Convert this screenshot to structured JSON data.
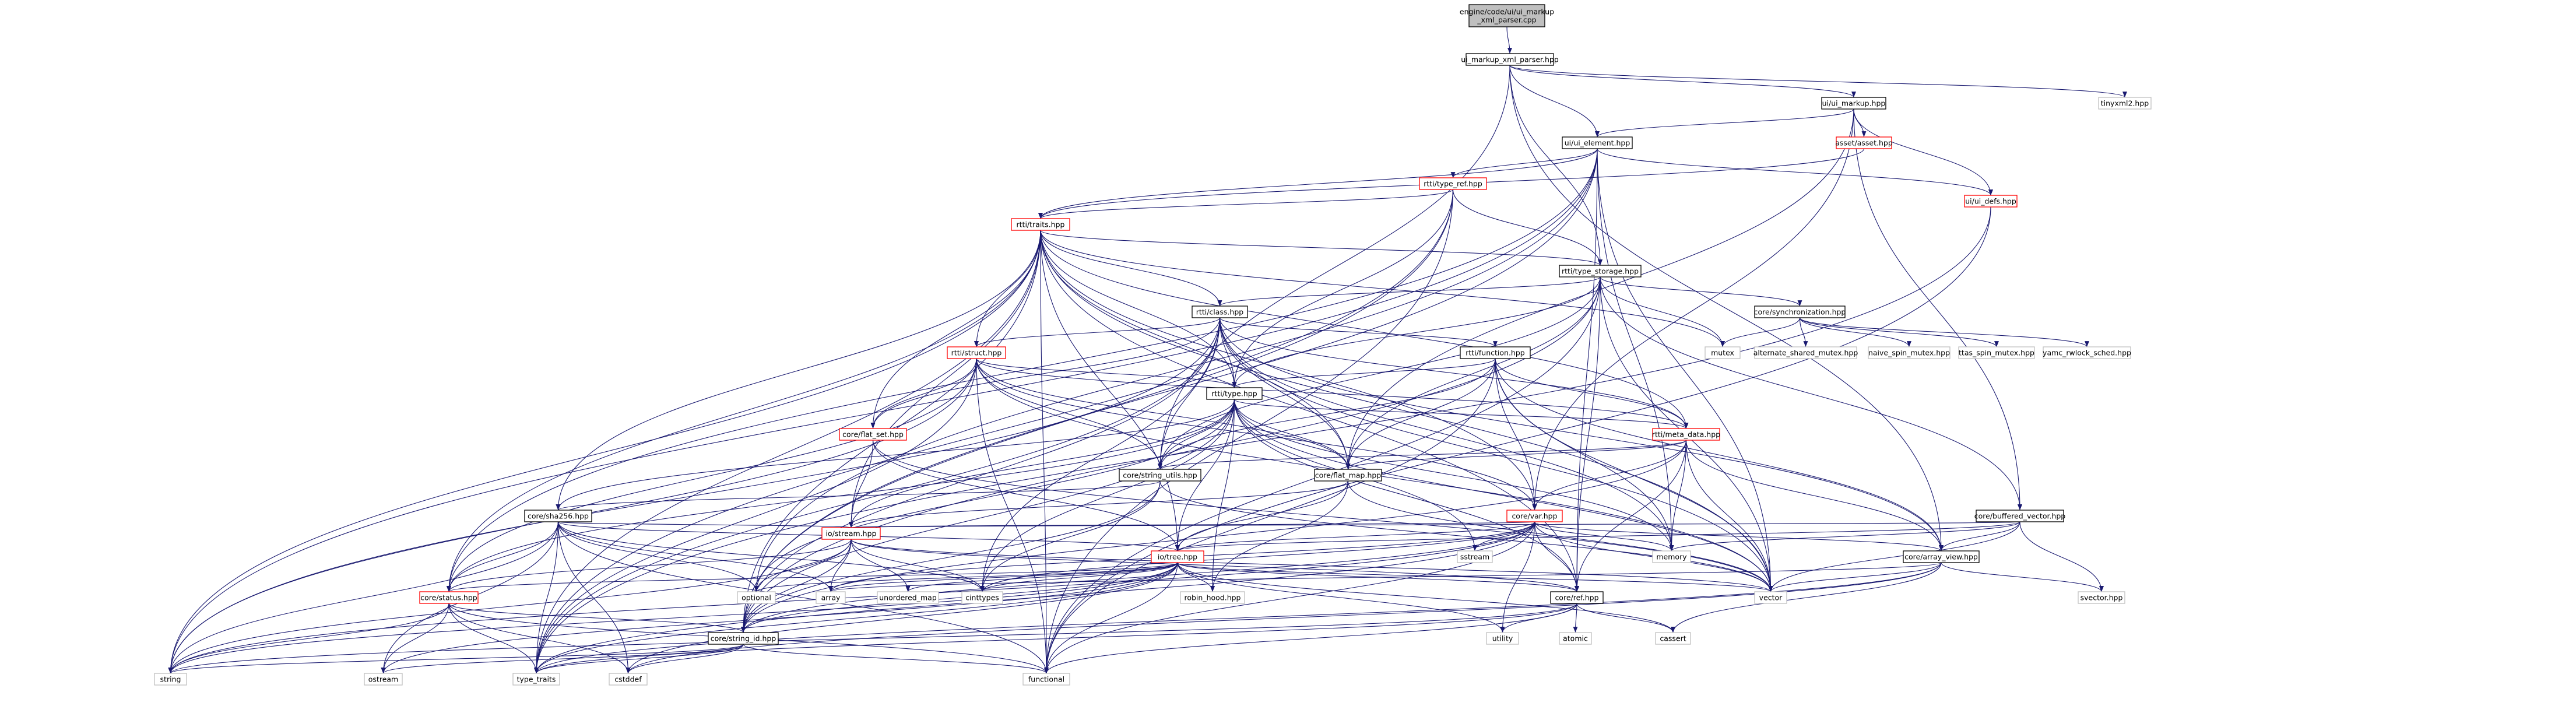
{
  "diagram": {
    "type": "include-dependency-graph",
    "colors": {
      "edge": "#191970",
      "root_fill": "#bfbfbf",
      "normal_fill": "#ffffff",
      "normal_border": "#000000",
      "truncated_border": "#ff0000"
    },
    "nodes": [
      {
        "id": "root",
        "label": "engine/code/ui/ui_markup\n_xml_parser.cpp",
        "style": "root"
      },
      {
        "id": "ui_markup_xml_parser_hpp",
        "label": "ui_markup_xml_parser.hpp",
        "style": "normal"
      },
      {
        "id": "ui_markup_hpp",
        "label": "ui/ui_markup.hpp",
        "style": "normal"
      },
      {
        "id": "tinyxml2_hpp",
        "label": "tinyxml2.hpp",
        "style": "external"
      },
      {
        "id": "ui_element_hpp",
        "label": "ui/ui_element.hpp",
        "style": "normal"
      },
      {
        "id": "asset_hpp",
        "label": "asset/asset.hpp",
        "style": "truncated"
      },
      {
        "id": "ui_defs_hpp",
        "label": "ui/ui_defs.hpp",
        "style": "truncated"
      },
      {
        "id": "type_ref_hpp",
        "label": "rtti/type_ref.hpp",
        "style": "truncated"
      },
      {
        "id": "traits_hpp",
        "label": "rtti/traits.hpp",
        "style": "truncated"
      },
      {
        "id": "type_storage_hpp",
        "label": "rtti/type_storage.hpp",
        "style": "normal"
      },
      {
        "id": "class_hpp",
        "label": "rtti/class.hpp",
        "style": "normal"
      },
      {
        "id": "synchronization_hpp",
        "label": "core/synchronization.hpp",
        "style": "normal"
      },
      {
        "id": "mutex",
        "label": "mutex",
        "style": "external"
      },
      {
        "id": "alternate_shared_mutex_hpp",
        "label": "alternate_shared_mutex.hpp",
        "style": "external"
      },
      {
        "id": "naive_spin_mutex_hpp",
        "label": "naive_spin_mutex.hpp",
        "style": "external"
      },
      {
        "id": "ttas_spin_mutex_hpp",
        "label": "ttas_spin_mutex.hpp",
        "style": "external"
      },
      {
        "id": "yamc_rwlock_sched_hpp",
        "label": "yamc_rwlock_sched.hpp",
        "style": "external"
      },
      {
        "id": "struct_hpp",
        "label": "rtti/struct.hpp",
        "style": "truncated"
      },
      {
        "id": "function_hpp",
        "label": "rtti/function.hpp",
        "style": "normal"
      },
      {
        "id": "type_hpp",
        "label": "rtti/type.hpp",
        "style": "normal"
      },
      {
        "id": "meta_data_hpp",
        "label": "rtti/meta_data.hpp",
        "style": "truncated"
      },
      {
        "id": "flat_set_hpp",
        "label": "core/flat_set.hpp",
        "style": "truncated"
      },
      {
        "id": "string_utils_hpp",
        "label": "core/string_utils.hpp",
        "style": "normal"
      },
      {
        "id": "flat_map_hpp",
        "label": "core/flat_map.hpp",
        "style": "normal"
      },
      {
        "id": "sha256_hpp",
        "label": "core/sha256.hpp",
        "style": "normal"
      },
      {
        "id": "var_hpp",
        "label": "core/var.hpp",
        "style": "truncated"
      },
      {
        "id": "buffered_vector_hpp",
        "label": "core/buffered_vector.hpp",
        "style": "normal"
      },
      {
        "id": "stream_hpp",
        "label": "io/stream.hpp",
        "style": "truncated"
      },
      {
        "id": "tree_hpp",
        "label": "io/tree.hpp",
        "style": "truncated"
      },
      {
        "id": "array_view_hpp",
        "label": "core/array_view.hpp",
        "style": "normal"
      },
      {
        "id": "status_hpp",
        "label": "core/status.hpp",
        "style": "truncated"
      },
      {
        "id": "ref_hpp",
        "label": "core/ref.hpp",
        "style": "normal"
      },
      {
        "id": "string_id_hpp",
        "label": "core/string_id.hpp",
        "style": "normal"
      },
      {
        "id": "sstream",
        "label": "sstream",
        "style": "external"
      },
      {
        "id": "memory",
        "label": "memory",
        "style": "external"
      },
      {
        "id": "optional",
        "label": "optional",
        "style": "external"
      },
      {
        "id": "array",
        "label": "array",
        "style": "external"
      },
      {
        "id": "unordered_map",
        "label": "unordered_map",
        "style": "external"
      },
      {
        "id": "cinttypes",
        "label": "cinttypes",
        "style": "external"
      },
      {
        "id": "robin_hood_hpp",
        "label": "robin_hood.hpp",
        "style": "external"
      },
      {
        "id": "vector",
        "label": "vector",
        "style": "external"
      },
      {
        "id": "svector_hpp",
        "label": "svector.hpp",
        "style": "external"
      },
      {
        "id": "utility",
        "label": "utility",
        "style": "external"
      },
      {
        "id": "atomic",
        "label": "atomic",
        "style": "external"
      },
      {
        "id": "cassert",
        "label": "cassert",
        "style": "external"
      },
      {
        "id": "string",
        "label": "string",
        "style": "external"
      },
      {
        "id": "ostream",
        "label": "ostream",
        "style": "external"
      },
      {
        "id": "type_traits",
        "label": "type_traits",
        "style": "external"
      },
      {
        "id": "cstddef",
        "label": "cstddef",
        "style": "external"
      },
      {
        "id": "functional",
        "label": "functional",
        "style": "external"
      }
    ],
    "edges": [
      [
        "root",
        "ui_markup_xml_parser_hpp"
      ],
      [
        "ui_markup_xml_parser_hpp",
        "ui_markup_hpp"
      ],
      [
        "ui_markup_xml_parser_hpp",
        "tinyxml2_hpp"
      ],
      [
        "ui_markup_xml_parser_hpp",
        "ui_element_hpp"
      ],
      [
        "ui_markup_xml_parser_hpp",
        "type_storage_hpp"
      ],
      [
        "ui_markup_xml_parser_hpp",
        "string_utils_hpp"
      ],
      [
        "ui_markup_xml_parser_hpp",
        "array_view_hpp"
      ],
      [
        "ui_markup_hpp",
        "ui_element_hpp"
      ],
      [
        "ui_markup_hpp",
        "asset_hpp"
      ],
      [
        "ui_markup_hpp",
        "ui_defs_hpp"
      ],
      [
        "ui_markup_hpp",
        "buffered_vector_hpp"
      ],
      [
        "ui_markup_hpp",
        "flat_map_hpp"
      ],
      [
        "ui_markup_hpp",
        "var_hpp"
      ],
      [
        "ui_element_hpp",
        "type_ref_hpp"
      ],
      [
        "ui_element_hpp",
        "traits_hpp"
      ],
      [
        "ui_element_hpp",
        "ui_defs_hpp"
      ],
      [
        "ui_element_hpp",
        "string"
      ],
      [
        "ui_element_hpp",
        "status_hpp"
      ],
      [
        "ui_element_hpp",
        "string_id_hpp"
      ],
      [
        "ui_element_hpp",
        "optional"
      ],
      [
        "ui_element_hpp",
        "vector"
      ],
      [
        "ui_element_hpp",
        "ref_hpp"
      ],
      [
        "ui_element_hpp",
        "memory"
      ],
      [
        "asset_hpp",
        "traits_hpp"
      ],
      [
        "ui_defs_hpp",
        "functional"
      ],
      [
        "ui_defs_hpp",
        "type_traits"
      ],
      [
        "type_ref_hpp",
        "traits_hpp"
      ],
      [
        "type_ref_hpp",
        "type_storage_hpp"
      ],
      [
        "type_ref_hpp",
        "type_hpp"
      ],
      [
        "type_ref_hpp",
        "string_id_hpp"
      ],
      [
        "type_ref_hpp",
        "functional"
      ],
      [
        "type_ref_hpp",
        "type_traits"
      ],
      [
        "traits_hpp",
        "type_storage_hpp"
      ],
      [
        "traits_hpp",
        "class_hpp"
      ],
      [
        "traits_hpp",
        "struct_hpp"
      ],
      [
        "traits_hpp",
        "type_hpp"
      ],
      [
        "traits_hpp",
        "meta_data_hpp"
      ],
      [
        "traits_hpp",
        "flat_set_hpp"
      ],
      [
        "traits_hpp",
        "flat_map_hpp"
      ],
      [
        "traits_hpp",
        "sha256_hpp"
      ],
      [
        "traits_hpp",
        "var_hpp"
      ],
      [
        "traits_hpp",
        "stream_hpp"
      ],
      [
        "traits_hpp",
        "tree_hpp"
      ],
      [
        "traits_hpp",
        "status_hpp"
      ],
      [
        "traits_hpp",
        "ref_hpp"
      ],
      [
        "traits_hpp",
        "string_id_hpp"
      ],
      [
        "traits_hpp",
        "mutex"
      ],
      [
        "traits_hpp",
        "string"
      ],
      [
        "traits_hpp",
        "type_traits"
      ],
      [
        "traits_hpp",
        "functional"
      ],
      [
        "traits_hpp",
        "vector"
      ],
      [
        "type_storage_hpp",
        "class_hpp"
      ],
      [
        "type_storage_hpp",
        "synchronization_hpp"
      ],
      [
        "type_storage_hpp",
        "mutex"
      ],
      [
        "type_storage_hpp",
        "type_hpp"
      ],
      [
        "type_storage_hpp",
        "string_utils_hpp"
      ],
      [
        "type_storage_hpp",
        "flat_map_hpp"
      ],
      [
        "type_storage_hpp",
        "buffered_vector_hpp"
      ],
      [
        "type_storage_hpp",
        "ref_hpp"
      ],
      [
        "type_storage_hpp",
        "string_id_hpp"
      ],
      [
        "type_storage_hpp",
        "vector"
      ],
      [
        "type_storage_hpp",
        "functional"
      ],
      [
        "synchronization_hpp",
        "mutex"
      ],
      [
        "synchronization_hpp",
        "alternate_shared_mutex_hpp"
      ],
      [
        "synchronization_hpp",
        "naive_spin_mutex_hpp"
      ],
      [
        "synchronization_hpp",
        "ttas_spin_mutex_hpp"
      ],
      [
        "synchronization_hpp",
        "yamc_rwlock_sched_hpp"
      ],
      [
        "class_hpp",
        "struct_hpp"
      ],
      [
        "class_hpp",
        "function_hpp"
      ],
      [
        "class_hpp",
        "type_hpp"
      ],
      [
        "class_hpp",
        "meta_data_hpp"
      ],
      [
        "class_hpp",
        "flat_set_hpp"
      ],
      [
        "class_hpp",
        "flat_map_hpp"
      ],
      [
        "class_hpp",
        "string_utils_hpp"
      ],
      [
        "class_hpp",
        "array_view_hpp"
      ],
      [
        "class_hpp",
        "string"
      ],
      [
        "class_hpp",
        "vector"
      ],
      [
        "class_hpp",
        "memory"
      ],
      [
        "class_hpp",
        "type_traits"
      ],
      [
        "class_hpp",
        "string_id_hpp"
      ],
      [
        "class_hpp",
        "cinttypes"
      ],
      [
        "struct_hpp",
        "type_hpp"
      ],
      [
        "struct_hpp",
        "meta_data_hpp"
      ],
      [
        "struct_hpp",
        "flat_set_hpp"
      ],
      [
        "struct_hpp",
        "flat_map_hpp"
      ],
      [
        "struct_hpp",
        "string_utils_hpp"
      ],
      [
        "struct_hpp",
        "var_hpp"
      ],
      [
        "struct_hpp",
        "status_hpp"
      ],
      [
        "struct_hpp",
        "string"
      ],
      [
        "struct_hpp",
        "vector"
      ],
      [
        "struct_hpp",
        "type_traits"
      ],
      [
        "struct_hpp",
        "functional"
      ],
      [
        "function_hpp",
        "type_hpp"
      ],
      [
        "function_hpp",
        "meta_data_hpp"
      ],
      [
        "function_hpp",
        "var_hpp"
      ],
      [
        "function_hpp",
        "flat_map_hpp"
      ],
      [
        "function_hpp",
        "string_utils_hpp"
      ],
      [
        "function_hpp",
        "array_view_hpp"
      ],
      [
        "function_hpp",
        "vector"
      ],
      [
        "function_hpp",
        "functional"
      ],
      [
        "function_hpp",
        "memory"
      ],
      [
        "type_hpp",
        "meta_data_hpp"
      ],
      [
        "type_hpp",
        "string_utils_hpp"
      ],
      [
        "type_hpp",
        "flat_map_hpp"
      ],
      [
        "type_hpp",
        "sha256_hpp"
      ],
      [
        "type_hpp",
        "stream_hpp"
      ],
      [
        "type_hpp",
        "tree_hpp"
      ],
      [
        "type_hpp",
        "status_hpp"
      ],
      [
        "type_hpp",
        "ref_hpp"
      ],
      [
        "type_hpp",
        "string_id_hpp"
      ],
      [
        "type_hpp",
        "sstream"
      ],
      [
        "type_hpp",
        "memory"
      ],
      [
        "type_hpp",
        "optional"
      ],
      [
        "type_hpp",
        "vector"
      ],
      [
        "type_hpp",
        "robin_hood_hpp"
      ],
      [
        "type_hpp",
        "cinttypes"
      ],
      [
        "meta_data_hpp",
        "string_utils_hpp"
      ],
      [
        "meta_data_hpp",
        "flat_map_hpp"
      ],
      [
        "meta_data_hpp",
        "var_hpp"
      ],
      [
        "meta_data_hpp",
        "array_view_hpp"
      ],
      [
        "meta_data_hpp",
        "ref_hpp"
      ],
      [
        "meta_data_hpp",
        "vector"
      ],
      [
        "meta_data_hpp",
        "memory"
      ],
      [
        "meta_data_hpp",
        "string_id_hpp"
      ],
      [
        "flat_set_hpp",
        "stream_hpp"
      ],
      [
        "flat_set_hpp",
        "tree_hpp"
      ],
      [
        "flat_set_hpp",
        "vector"
      ],
      [
        "string_utils_hpp",
        "sha256_hpp"
      ],
      [
        "string_utils_hpp",
        "string_id_hpp"
      ],
      [
        "string_utils_hpp",
        "vector"
      ],
      [
        "string_utils_hpp",
        "cinttypes"
      ],
      [
        "flat_map_hpp",
        "stream_hpp"
      ],
      [
        "flat_map_hpp",
        "tree_hpp"
      ],
      [
        "flat_map_hpp",
        "robin_hood_hpp"
      ],
      [
        "flat_map_hpp",
        "vector"
      ],
      [
        "sha256_hpp",
        "stream_hpp"
      ],
      [
        "sha256_hpp",
        "tree_hpp"
      ],
      [
        "sha256_hpp",
        "status_hpp"
      ],
      [
        "sha256_hpp",
        "array"
      ],
      [
        "sha256_hpp",
        "string"
      ],
      [
        "sha256_hpp",
        "ostream"
      ],
      [
        "sha256_hpp",
        "type_traits"
      ],
      [
        "sha256_hpp",
        "cstddef"
      ],
      [
        "sha256_hpp",
        "functional"
      ],
      [
        "sha256_hpp",
        "cinttypes"
      ],
      [
        "sha256_hpp",
        "optional"
      ],
      [
        "var_hpp",
        "stream_hpp"
      ],
      [
        "var_hpp",
        "tree_hpp"
      ],
      [
        "var_hpp",
        "array_view_hpp"
      ],
      [
        "var_hpp",
        "ref_hpp"
      ],
      [
        "var_hpp",
        "string_id_hpp"
      ],
      [
        "var_hpp",
        "sstream"
      ],
      [
        "var_hpp",
        "memory"
      ],
      [
        "var_hpp",
        "vector"
      ],
      [
        "var_hpp",
        "array"
      ],
      [
        "var_hpp",
        "cinttypes"
      ],
      [
        "var_hpp",
        "functional"
      ],
      [
        "var_hpp",
        "type_traits"
      ],
      [
        "var_hpp",
        "utility"
      ],
      [
        "var_hpp",
        "string"
      ],
      [
        "buffered_vector_hpp",
        "array_view_hpp"
      ],
      [
        "buffered_vector_hpp",
        "vector"
      ],
      [
        "buffered_vector_hpp",
        "svector_hpp"
      ],
      [
        "buffered_vector_hpp",
        "memory"
      ],
      [
        "buffered_vector_hpp",
        "stream_hpp"
      ],
      [
        "buffered_vector_hpp",
        "tree_hpp"
      ],
      [
        "stream_hpp",
        "status_hpp"
      ],
      [
        "stream_hpp",
        "string_id_hpp"
      ],
      [
        "stream_hpp",
        "ref_hpp"
      ],
      [
        "stream_hpp",
        "optional"
      ],
      [
        "stream_hpp",
        "array"
      ],
      [
        "stream_hpp",
        "unordered_map"
      ],
      [
        "stream_hpp",
        "cinttypes"
      ],
      [
        "stream_hpp",
        "vector"
      ],
      [
        "stream_hpp",
        "string"
      ],
      [
        "tree_hpp",
        "status_hpp"
      ],
      [
        "tree_hpp",
        "string_id_hpp"
      ],
      [
        "tree_hpp",
        "ref_hpp"
      ],
      [
        "tree_hpp",
        "optional"
      ],
      [
        "tree_hpp",
        "array"
      ],
      [
        "tree_hpp",
        "unordered_map"
      ],
      [
        "tree_hpp",
        "cinttypes"
      ],
      [
        "tree_hpp",
        "robin_hood_hpp"
      ],
      [
        "tree_hpp",
        "vector"
      ],
      [
        "tree_hpp",
        "string"
      ],
      [
        "tree_hpp",
        "ostream"
      ],
      [
        "tree_hpp",
        "type_traits"
      ],
      [
        "tree_hpp",
        "cstddef"
      ],
      [
        "tree_hpp",
        "functional"
      ],
      [
        "tree_hpp",
        "utility"
      ],
      [
        "tree_hpp",
        "cassert"
      ],
      [
        "array_view_hpp",
        "vector"
      ],
      [
        "array_view_hpp",
        "svector_hpp"
      ],
      [
        "array_view_hpp",
        "array"
      ],
      [
        "array_view_hpp",
        "cassert"
      ],
      [
        "array_view_hpp",
        "type_traits"
      ],
      [
        "array_view_hpp",
        "cstddef"
      ],
      [
        "status_hpp",
        "string"
      ],
      [
        "status_hpp",
        "ostream"
      ],
      [
        "status_hpp",
        "type_traits"
      ],
      [
        "status_hpp",
        "functional"
      ],
      [
        "status_hpp",
        "string_id_hpp"
      ],
      [
        "status_hpp",
        "cstddef"
      ],
      [
        "ref_hpp",
        "atomic"
      ],
      [
        "ref_hpp",
        "utility"
      ],
      [
        "ref_hpp",
        "cassert"
      ],
      [
        "ref_hpp",
        "type_traits"
      ],
      [
        "ref_hpp",
        "functional"
      ],
      [
        "ref_hpp",
        "string"
      ],
      [
        "string_id_hpp",
        "string"
      ],
      [
        "string_id_hpp",
        "functional"
      ],
      [
        "string_id_hpp",
        "cstddef"
      ],
      [
        "string_id_hpp",
        "type_traits"
      ],
      [
        "string_id_hpp",
        "ostream"
      ]
    ]
  }
}
